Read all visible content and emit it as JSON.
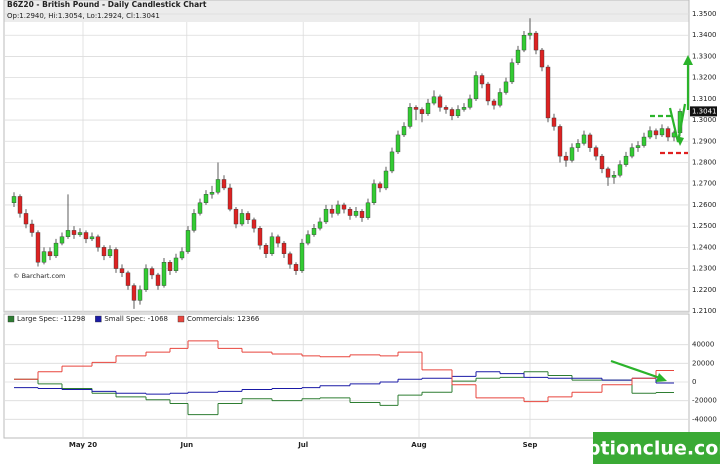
{
  "chart_data": [
    {
      "type": "candlestick",
      "title": "B6Z20 - British Pound - Daily Candlestick Chart",
      "subtitle": "Op:1.2940, Hi:1.3054, Lo:1.2924, Cl:1.3041",
      "credit": "© Barchart.com",
      "up_color": "#33cc33",
      "down_color": "#dd2222",
      "xlim": [
        -1.5,
        112.5
      ],
      "ylim": [
        1.21,
        1.35
      ],
      "yticks": [
        {
          "value": 1.21,
          "label": "1.2100"
        },
        {
          "value": 1.22,
          "label": "1.2200"
        },
        {
          "value": 1.23,
          "label": "1.2300"
        },
        {
          "value": 1.24,
          "label": "1.2400"
        },
        {
          "value": 1.25,
          "label": "1.2500"
        },
        {
          "value": 1.26,
          "label": "1.2600"
        },
        {
          "value": 1.27,
          "label": "1.2700"
        },
        {
          "value": 1.28,
          "label": "1.2800"
        },
        {
          "value": 1.29,
          "label": "1.2900"
        },
        {
          "value": 1.3,
          "label": "1.3000"
        },
        {
          "value": 1.31,
          "label": "1.3100"
        },
        {
          "value": 1.32,
          "label": "1.3200"
        },
        {
          "value": 1.33,
          "label": "1.3300"
        },
        {
          "value": 1.34,
          "label": "1.3400"
        },
        {
          "value": 1.35,
          "label": "1.3500"
        }
      ],
      "grid": true,
      "last_price": {
        "value": 1.3041,
        "label": "1.3041"
      },
      "ohlc": [
        [
          1.261,
          1.266,
          1.259,
          1.264
        ],
        [
          1.264,
          1.265,
          1.254,
          1.256
        ],
        [
          1.256,
          1.258,
          1.249,
          1.251
        ],
        [
          1.251,
          1.253,
          1.245,
          1.247
        ],
        [
          1.247,
          1.248,
          1.231,
          1.233
        ],
        [
          1.233,
          1.24,
          1.232,
          1.238
        ],
        [
          1.238,
          1.24,
          1.234,
          1.236
        ],
        [
          1.236,
          1.244,
          1.235,
          1.242
        ],
        [
          1.242,
          1.247,
          1.241,
          1.245
        ],
        [
          1.245,
          1.265,
          1.244,
          1.248
        ],
        [
          1.248,
          1.25,
          1.244,
          1.246
        ],
        [
          1.246,
          1.249,
          1.245,
          1.247
        ],
        [
          1.247,
          1.248,
          1.242,
          1.244
        ],
        [
          1.244,
          1.247,
          1.243,
          1.245
        ],
        [
          1.245,
          1.246,
          1.238,
          1.24
        ],
        [
          1.24,
          1.241,
          1.234,
          1.236
        ],
        [
          1.236,
          1.241,
          1.235,
          1.239
        ],
        [
          1.239,
          1.24,
          1.228,
          1.23
        ],
        [
          1.23,
          1.232,
          1.226,
          1.228
        ],
        [
          1.228,
          1.229,
          1.22,
          1.222
        ],
        [
          1.222,
          1.223,
          1.211,
          1.215
        ],
        [
          1.215,
          1.222,
          1.213,
          1.22
        ],
        [
          1.22,
          1.232,
          1.219,
          1.23
        ],
        [
          1.23,
          1.231,
          1.225,
          1.227
        ],
        [
          1.227,
          1.228,
          1.22,
          1.222
        ],
        [
          1.222,
          1.235,
          1.221,
          1.233
        ],
        [
          1.233,
          1.234,
          1.227,
          1.229
        ],
        [
          1.229,
          1.237,
          1.228,
          1.235
        ],
        [
          1.235,
          1.24,
          1.234,
          1.238
        ],
        [
          1.238,
          1.25,
          1.237,
          1.248
        ],
        [
          1.248,
          1.258,
          1.247,
          1.256
        ],
        [
          1.256,
          1.263,
          1.255,
          1.261
        ],
        [
          1.261,
          1.267,
          1.26,
          1.265
        ],
        [
          1.265,
          1.269,
          1.263,
          1.266
        ],
        [
          1.266,
          1.28,
          1.265,
          1.272
        ],
        [
          1.272,
          1.274,
          1.267,
          1.268
        ],
        [
          1.268,
          1.27,
          1.257,
          1.258
        ],
        [
          1.258,
          1.259,
          1.249,
          1.251
        ],
        [
          1.251,
          1.258,
          1.25,
          1.256
        ],
        [
          1.256,
          1.257,
          1.251,
          1.253
        ],
        [
          1.253,
          1.254,
          1.247,
          1.249
        ],
        [
          1.249,
          1.25,
          1.239,
          1.241
        ],
        [
          1.241,
          1.242,
          1.235,
          1.237
        ],
        [
          1.237,
          1.247,
          1.236,
          1.245
        ],
        [
          1.245,
          1.246,
          1.24,
          1.242
        ],
        [
          1.242,
          1.243,
          1.235,
          1.237
        ],
        [
          1.237,
          1.238,
          1.23,
          1.232
        ],
        [
          1.232,
          1.233,
          1.227,
          1.229
        ],
        [
          1.229,
          1.244,
          1.228,
          1.242
        ],
        [
          1.242,
          1.248,
          1.241,
          1.246
        ],
        [
          1.246,
          1.251,
          1.245,
          1.249
        ],
        [
          1.249,
          1.254,
          1.248,
          1.252
        ],
        [
          1.252,
          1.26,
          1.251,
          1.258
        ],
        [
          1.258,
          1.26,
          1.254,
          1.256
        ],
        [
          1.256,
          1.262,
          1.255,
          1.26
        ],
        [
          1.26,
          1.261,
          1.256,
          1.258
        ],
        [
          1.258,
          1.259,
          1.253,
          1.255
        ],
        [
          1.255,
          1.259,
          1.254,
          1.257
        ],
        [
          1.257,
          1.258,
          1.252,
          1.254
        ],
        [
          1.254,
          1.263,
          1.253,
          1.261
        ],
        [
          1.261,
          1.272,
          1.26,
          1.27
        ],
        [
          1.27,
          1.271,
          1.266,
          1.268
        ],
        [
          1.268,
          1.278,
          1.267,
          1.276
        ],
        [
          1.276,
          1.287,
          1.275,
          1.285
        ],
        [
          1.285,
          1.295,
          1.284,
          1.293
        ],
        [
          1.293,
          1.299,
          1.292,
          1.297
        ],
        [
          1.297,
          1.308,
          1.296,
          1.306
        ],
        [
          1.306,
          1.307,
          1.3,
          1.305
        ],
        [
          1.305,
          1.306,
          1.299,
          1.303
        ],
        [
          1.303,
          1.31,
          1.302,
          1.308
        ],
        [
          1.308,
          1.314,
          1.307,
          1.311
        ],
        [
          1.311,
          1.312,
          1.304,
          1.306
        ],
        [
          1.306,
          1.307,
          1.303,
          1.305
        ],
        [
          1.305,
          1.306,
          1.3,
          1.302
        ],
        [
          1.302,
          1.307,
          1.301,
          1.305
        ],
        [
          1.305,
          1.308,
          1.304,
          1.306
        ],
        [
          1.306,
          1.312,
          1.305,
          1.31
        ],
        [
          1.31,
          1.323,
          1.309,
          1.321
        ],
        [
          1.321,
          1.322,
          1.315,
          1.317
        ],
        [
          1.317,
          1.318,
          1.307,
          1.309
        ],
        [
          1.309,
          1.31,
          1.305,
          1.307
        ],
        [
          1.307,
          1.315,
          1.306,
          1.313
        ],
        [
          1.313,
          1.32,
          1.312,
          1.318
        ],
        [
          1.318,
          1.329,
          1.317,
          1.327
        ],
        [
          1.327,
          1.335,
          1.326,
          1.333
        ],
        [
          1.333,
          1.342,
          1.332,
          1.34
        ],
        [
          1.34,
          1.348,
          1.338,
          1.341
        ],
        [
          1.341,
          1.342,
          1.331,
          1.333
        ],
        [
          1.333,
          1.334,
          1.323,
          1.325
        ],
        [
          1.325,
          1.326,
          1.299,
          1.301
        ],
        [
          1.301,
          1.303,
          1.295,
          1.297
        ],
        [
          1.297,
          1.298,
          1.28,
          1.283
        ],
        [
          1.283,
          1.285,
          1.278,
          1.281
        ],
        [
          1.281,
          1.289,
          1.28,
          1.287
        ],
        [
          1.287,
          1.291,
          1.285,
          1.289
        ],
        [
          1.289,
          1.295,
          1.288,
          1.293
        ],
        [
          1.293,
          1.294,
          1.285,
          1.287
        ],
        [
          1.287,
          1.288,
          1.281,
          1.283
        ],
        [
          1.283,
          1.284,
          1.275,
          1.277
        ],
        [
          1.277,
          1.278,
          1.269,
          1.273
        ],
        [
          1.273,
          1.276,
          1.27,
          1.274
        ],
        [
          1.274,
          1.281,
          1.273,
          1.279
        ],
        [
          1.279,
          1.285,
          1.278,
          1.283
        ],
        [
          1.283,
          1.289,
          1.282,
          1.287
        ],
        [
          1.287,
          1.29,
          1.285,
          1.288
        ],
        [
          1.288,
          1.294,
          1.287,
          1.292
        ],
        [
          1.292,
          1.297,
          1.291,
          1.295
        ],
        [
          1.295,
          1.296,
          1.291,
          1.293
        ],
        [
          1.293,
          1.298,
          1.292,
          1.296
        ],
        [
          1.296,
          1.297,
          1.29,
          1.292
        ],
        [
          1.292,
          1.295,
          1.29,
          1.294
        ],
        [
          1.294,
          1.3054,
          1.2924,
          1.3041
        ]
      ]
    },
    {
      "type": "step",
      "xlim": [
        -1.5,
        112.5
      ],
      "ylim": [
        -60000,
        60000
      ],
      "yticks": [
        40000,
        20000,
        0,
        -20000,
        -40000
      ],
      "xticks": [
        {
          "value": 11.5,
          "label": "May 20"
        },
        {
          "value": 28.8,
          "label": "Jun"
        },
        {
          "value": 48.2,
          "label": "Jul"
        },
        {
          "value": 67.5,
          "label": "Aug"
        },
        {
          "value": 86,
          "label": "Sep"
        }
      ],
      "grid": true,
      "legend": "top-left",
      "x": [
        0,
        4,
        8,
        13,
        17,
        22,
        26,
        29,
        34,
        38,
        43,
        48,
        51,
        56,
        61,
        64,
        68,
        73,
        77,
        81,
        85,
        89,
        93,
        98,
        103,
        107
      ],
      "series": [
        {
          "name": "Large Spec: -11298",
          "color": "#2e7d32",
          "values": [
            3000,
            -2000,
            -7000,
            -12000,
            -16000,
            -19000,
            -23000,
            -35000,
            -23000,
            -18000,
            -20000,
            -18000,
            -17000,
            -22000,
            -25000,
            -14000,
            -11000,
            1000,
            4000,
            5000,
            11000,
            7000,
            2000,
            2000,
            -12000,
            -11298
          ]
        },
        {
          "name": "Small Spec: -1068",
          "color": "#1a1aa6",
          "values": [
            -6000,
            -7000,
            -8000,
            -10000,
            -12000,
            -13000,
            -12000,
            -11000,
            -10000,
            -8000,
            -7000,
            -6000,
            -4000,
            -2000,
            0,
            3000,
            4000,
            6000,
            11000,
            9000,
            5000,
            4000,
            4000,
            2000,
            4000,
            -1068
          ]
        },
        {
          "name": "Commercials: 12366",
          "color": "#e8453c",
          "values": [
            3000,
            11000,
            17000,
            21000,
            28000,
            32000,
            36000,
            44000,
            36000,
            32000,
            30000,
            28000,
            27000,
            29000,
            28000,
            32000,
            13000,
            -3000,
            -17000,
            -17000,
            -21000,
            -16000,
            -11000,
            -3000,
            4000,
            12366
          ]
        }
      ]
    }
  ],
  "watermark": "optionclue.com"
}
